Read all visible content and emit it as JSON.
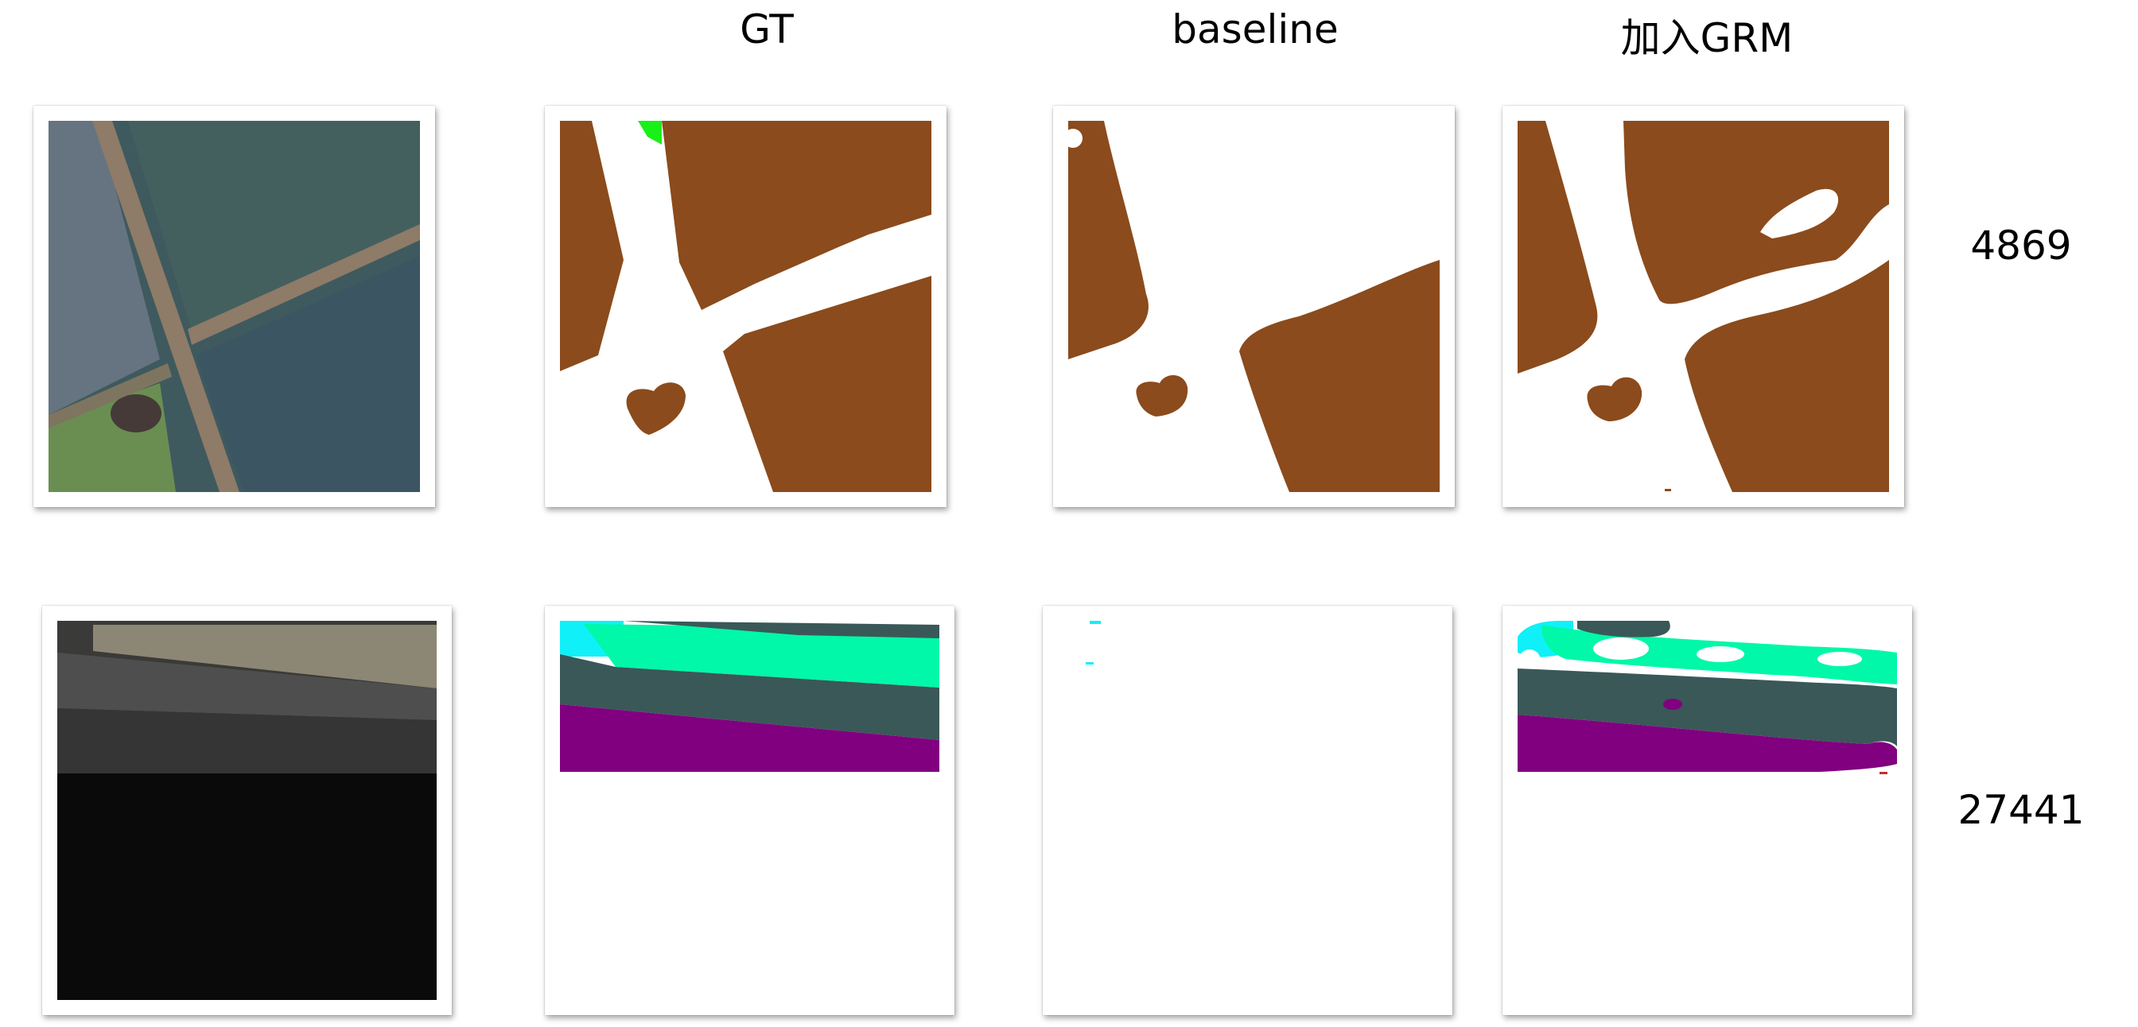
{
  "columns": [
    {
      "label": "GT"
    },
    {
      "label": "baseline"
    },
    {
      "label": "加入GRM"
    }
  ],
  "rows": [
    {
      "label": "4869"
    },
    {
      "label": "27441"
    }
  ],
  "colors": {
    "background_class": "#8B4B1C",
    "bright_green": "#18F018",
    "cyan": "#10F0F8",
    "aqua_green": "#00F8A8",
    "dark_slate": "#3A5858",
    "purple": "#800080",
    "white": "#FFFFFF"
  }
}
